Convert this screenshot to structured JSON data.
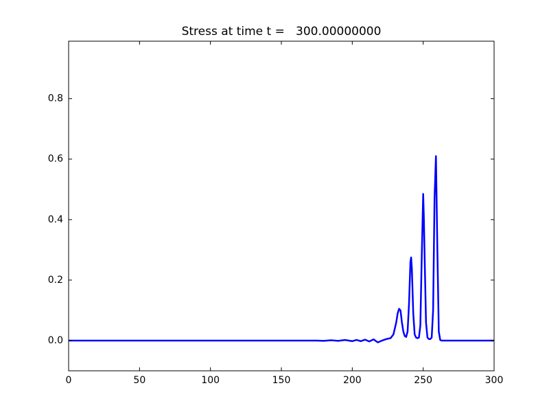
{
  "chart_data": {
    "type": "line",
    "title": "Stress at time t =   300.00000000",
    "x": [
      0,
      170,
      175,
      180,
      185,
      190,
      195,
      200,
      203,
      206,
      209,
      212,
      215,
      218,
      221,
      224,
      227,
      229,
      231,
      232,
      233,
      234,
      235,
      236,
      237,
      238,
      239,
      240,
      241,
      241.5,
      242,
      243,
      244,
      245,
      246,
      247,
      248,
      249,
      250,
      250.5,
      251,
      252,
      253,
      254,
      255,
      256,
      257,
      258,
      259,
      260,
      261,
      262,
      263,
      300
    ],
    "series": [
      {
        "color": "#0000ff",
        "values": [
          0,
          0,
          0,
          -0.001,
          0.001,
          -0.001,
          0.002,
          -0.002,
          0.002,
          -0.002,
          0.003,
          -0.003,
          0.004,
          -0.006,
          0.0,
          0.005,
          0.008,
          0.02,
          0.06,
          0.09,
          0.105,
          0.1,
          0.06,
          0.03,
          0.015,
          0.012,
          0.03,
          0.12,
          0.26,
          0.275,
          0.24,
          0.09,
          0.02,
          0.01,
          0.008,
          0.01,
          0.05,
          0.28,
          0.485,
          0.4,
          0.28,
          0.06,
          0.01,
          0.005,
          0.005,
          0.01,
          0.1,
          0.47,
          0.61,
          0.3,
          0.03,
          0.002,
          0,
          0
        ]
      }
    ],
    "xlim": [
      0,
      300
    ],
    "xticks": [
      0,
      50,
      100,
      150,
      200,
      250,
      300
    ],
    "ylim": [
      -0.1,
      0.99
    ],
    "yticks": [
      {
        "value": 0,
        "label": "0.0"
      },
      0.2,
      0.4,
      0.6,
      0.8
    ]
  }
}
